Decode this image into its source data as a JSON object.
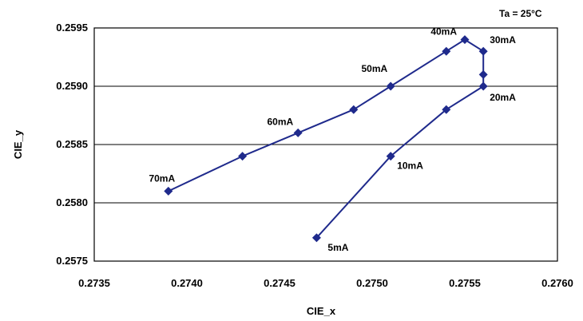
{
  "chart_data": {
    "type": "scatter",
    "annotation": "Ta = 25°C",
    "xlabel": "CIE_x",
    "ylabel": "CIE_y",
    "xlim": [
      0.2735,
      0.276
    ],
    "ylim": [
      0.2575,
      0.2595
    ],
    "xticks": [
      "0.2735",
      "0.2740",
      "0.2745",
      "0.2750",
      "0.2755",
      "0.2760"
    ],
    "yticks": [
      "0.2575",
      "0.2580",
      "0.2585",
      "0.2590",
      "0.2595"
    ],
    "grid": "horizontal",
    "legend": "none",
    "series_color": "#1f2a8c",
    "points": [
      {
        "x": 0.2747,
        "y": 0.2577,
        "label": "5mA"
      },
      {
        "x": 0.2751,
        "y": 0.2584,
        "label": "10mA"
      },
      {
        "x": 0.2754,
        "y": 0.2588,
        "label": ""
      },
      {
        "x": 0.2756,
        "y": 0.259,
        "label": "20mA"
      },
      {
        "x": 0.2756,
        "y": 0.2591,
        "label": ""
      },
      {
        "x": 0.2756,
        "y": 0.2593,
        "label": "30mA"
      },
      {
        "x": 0.2755,
        "y": 0.2594,
        "label": "40mA"
      },
      {
        "x": 0.2754,
        "y": 0.2593,
        "label": ""
      },
      {
        "x": 0.2751,
        "y": 0.259,
        "label": "50mA"
      },
      {
        "x": 0.2749,
        "y": 0.2588,
        "label": ""
      },
      {
        "x": 0.2746,
        "y": 0.2586,
        "label": "60mA"
      },
      {
        "x": 0.2743,
        "y": 0.2584,
        "label": ""
      },
      {
        "x": 0.2739,
        "y": 0.2581,
        "label": "70mA"
      }
    ]
  }
}
